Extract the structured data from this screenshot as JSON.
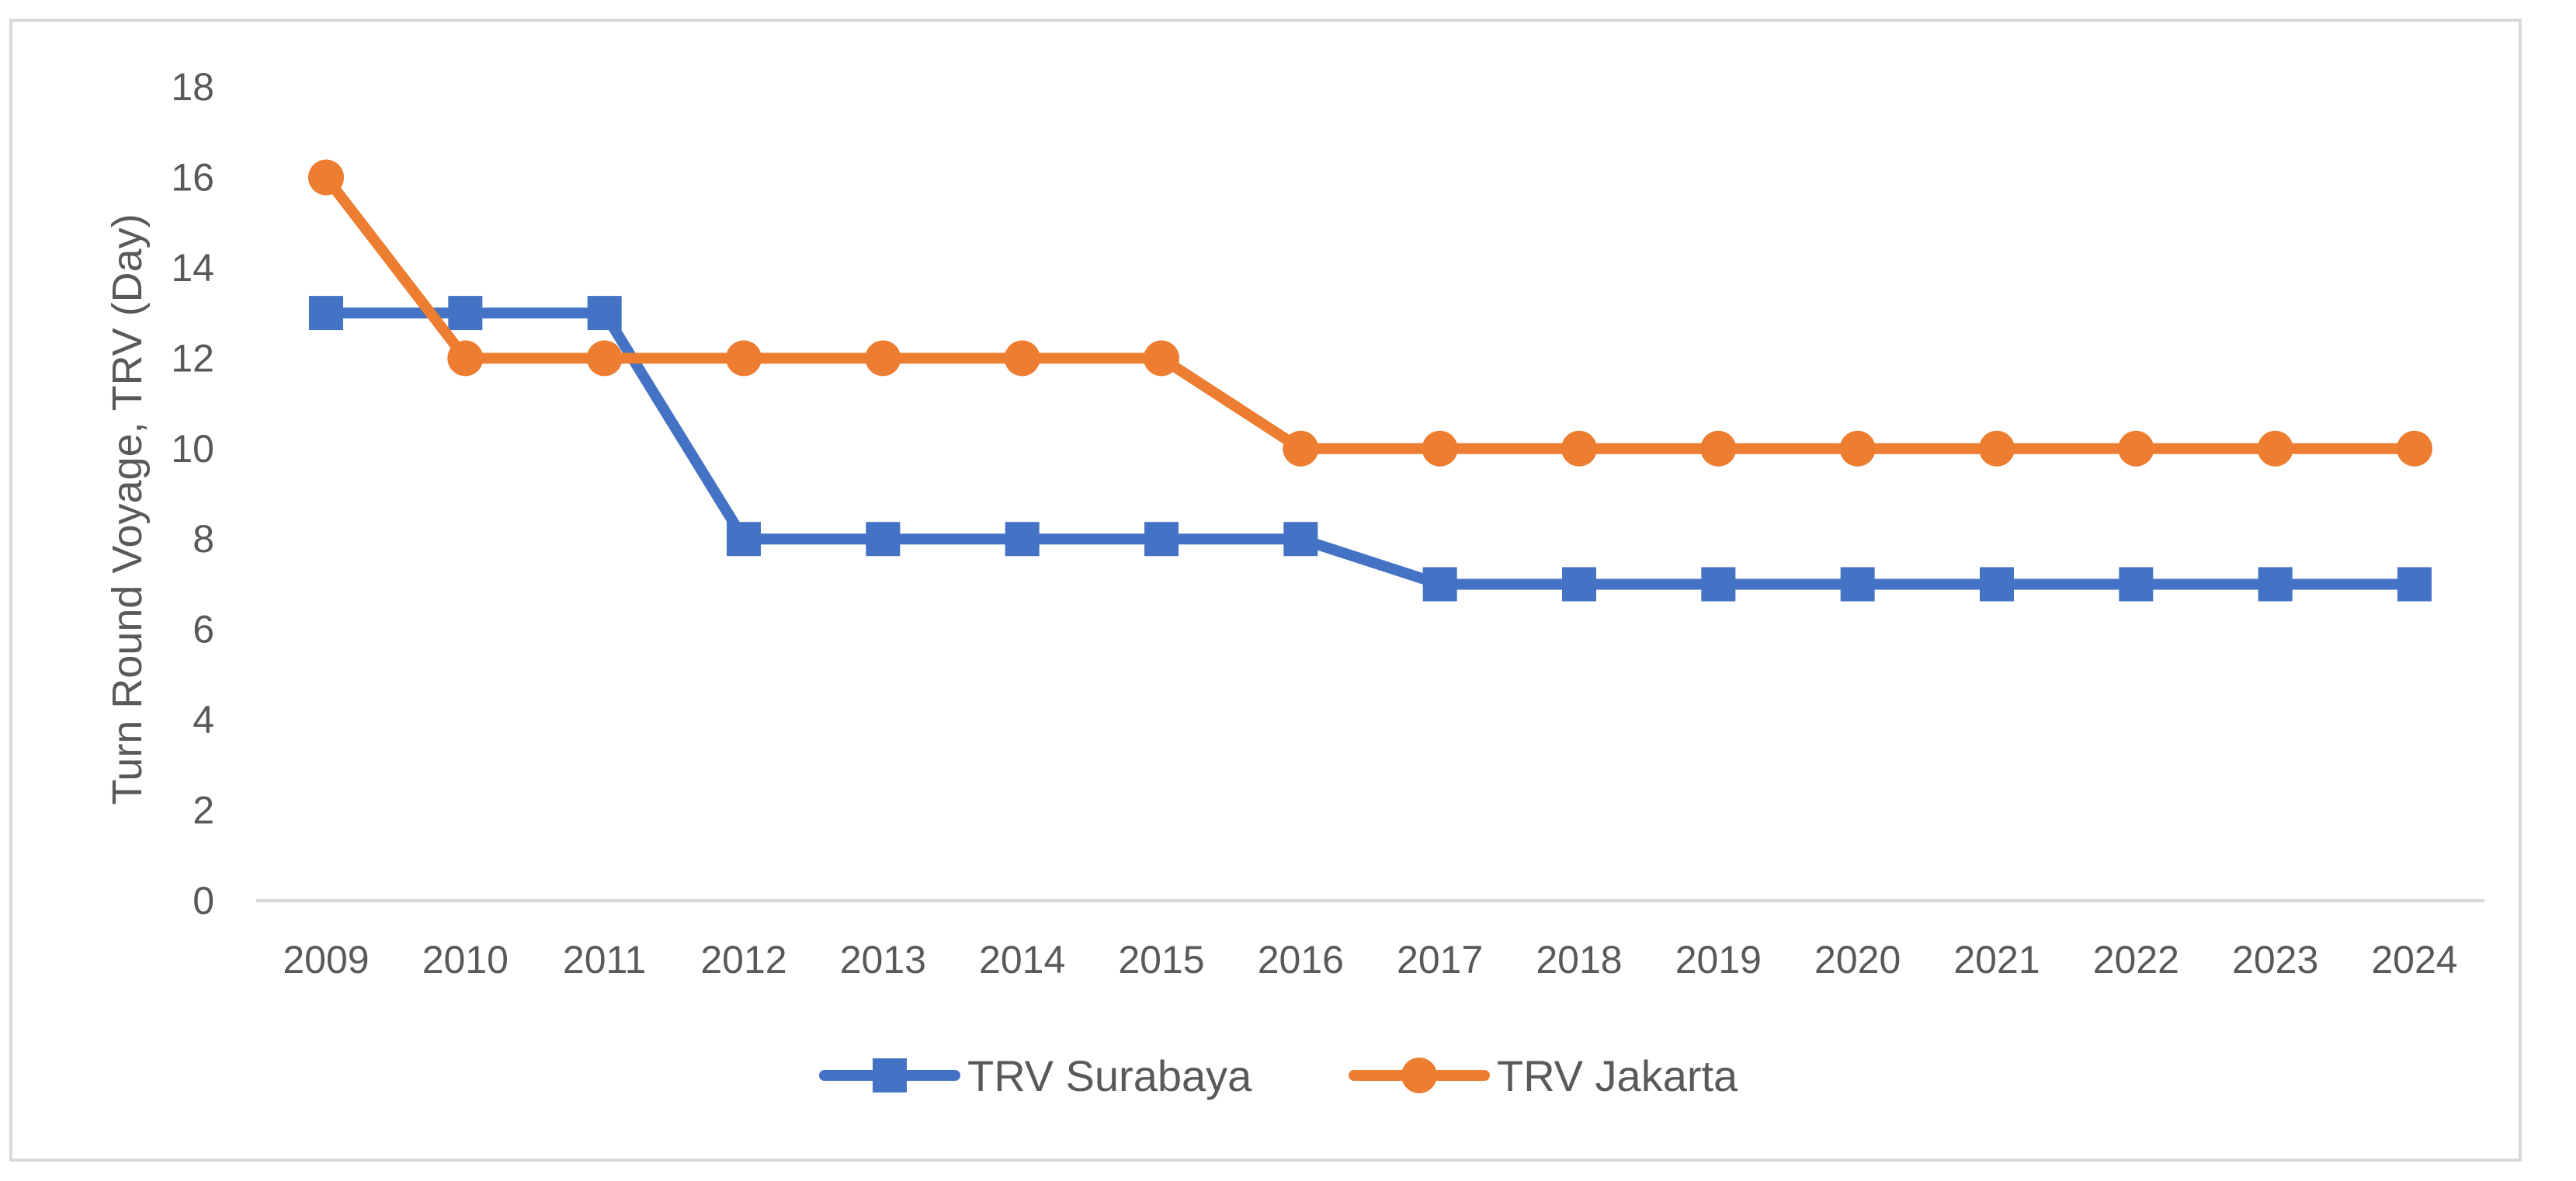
{
  "chart_data": {
    "type": "line",
    "title": "",
    "xlabel": "",
    "ylabel": "Turn Round Voyage, TRV (Day)",
    "ylim": [
      0,
      18
    ],
    "yticks": [
      0,
      2,
      4,
      6,
      8,
      10,
      12,
      14,
      16,
      18
    ],
    "grid": false,
    "legend_position": "bottom",
    "categories": [
      "2009",
      "2010",
      "2011",
      "2012",
      "2013",
      "2014",
      "2015",
      "2016",
      "2017",
      "2018",
      "2019",
      "2020",
      "2021",
      "2022",
      "2023",
      "2024"
    ],
    "series": [
      {
        "name": "TRV Surabaya",
        "color": "#4472C4",
        "marker": "square",
        "values": [
          13,
          13,
          13,
          8,
          8,
          8,
          8,
          8,
          7,
          7,
          7,
          7,
          7,
          7,
          7,
          7
        ]
      },
      {
        "name": "TRV Jakarta",
        "color": "#ED7D31",
        "marker": "circle",
        "values": [
          16,
          12,
          12,
          12,
          12,
          12,
          12,
          10,
          10,
          10,
          10,
          10,
          10,
          10,
          10,
          10
        ]
      }
    ]
  }
}
